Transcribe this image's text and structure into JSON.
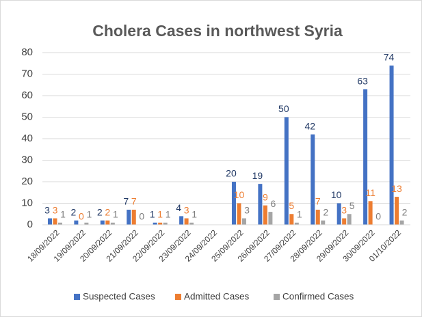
{
  "chart_data": {
    "type": "bar",
    "title": "Cholera Cases in northwest Syria",
    "categories": [
      "18/09/2022",
      "19/09/2022",
      "20/09/2022",
      "21/09/2022",
      "22/09/2022",
      "23/09/2022",
      "24/09/2022",
      "25/09/2022",
      "26/09/2022",
      "27/09/2022",
      "28/09/2022",
      "29/09/2022",
      "30/09/2022",
      "01/10/2022"
    ],
    "series": [
      {
        "name": "Suspected Cases",
        "color": "#4472c4",
        "label_color": "#203864",
        "values": [
          3,
          2,
          2,
          7,
          1,
          4,
          null,
          20,
          19,
          50,
          42,
          10,
          63,
          74
        ]
      },
      {
        "name": "Admitted Cases",
        "color": "#ed7d31",
        "label_color": "#ed7d31",
        "values": [
          3,
          0,
          2,
          7,
          1,
          3,
          null,
          10,
          9,
          5,
          7,
          3,
          11,
          13
        ]
      },
      {
        "name": "Confirmed Cases",
        "color": "#a5a5a5",
        "label_color": "#7f7f7f",
        "values": [
          1,
          1,
          1,
          0,
          1,
          1,
          null,
          3,
          6,
          1,
          2,
          5,
          0,
          2
        ]
      }
    ],
    "ylim": [
      0,
      80
    ],
    "yticks": [
      0,
      10,
      20,
      30,
      40,
      50,
      60,
      70,
      80
    ],
    "grid": true,
    "legend": "bottom"
  }
}
